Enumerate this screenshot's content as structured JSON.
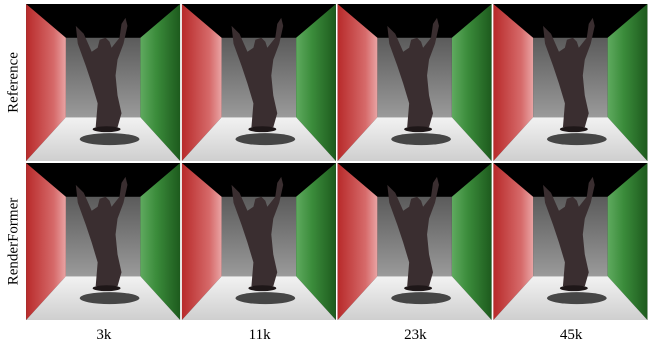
{
  "rows": [
    "Reference",
    "RenderFormer"
  ],
  "columns": [
    "3k",
    "11k",
    "23k",
    "45k"
  ]
}
